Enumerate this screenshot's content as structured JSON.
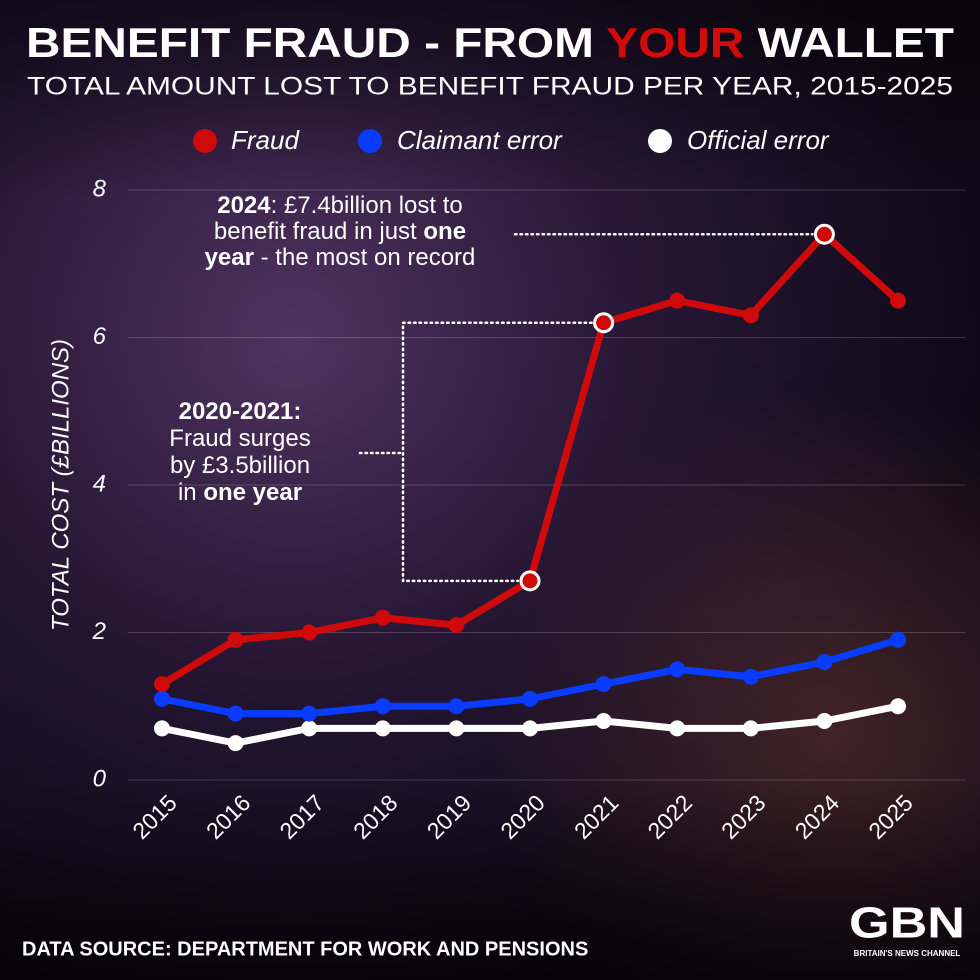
{
  "chart_data": {
    "type": "line",
    "title": [
      {
        "text": "BENEFIT FRAUD - FROM "
      },
      {
        "text": "YOUR",
        "color": "#d40b0b"
      },
      {
        "text": " WALLET"
      }
    ],
    "subtitle": "TOTAL AMOUNT LOST TO BENEFIT FRAUD PER YEAR, 2015-2025",
    "y_label": "TOTAL COST (£BILLIONS)",
    "categories": [
      "2015",
      "2016",
      "2017",
      "2018",
      "2019",
      "2020",
      "2021",
      "2022",
      "2023",
      "2024",
      "2025"
    ],
    "series": [
      {
        "name": "Fraud",
        "color": "#d00a0a",
        "values": [
          1.3,
          1.9,
          2.0,
          2.2,
          2.1,
          2.7,
          6.2,
          6.5,
          6.3,
          7.4,
          6.5
        ]
      },
      {
        "name": "Claimant error",
        "color": "#0a3cff",
        "values": [
          1.1,
          0.9,
          0.9,
          1.0,
          1.0,
          1.1,
          1.3,
          1.5,
          1.4,
          1.6,
          1.9
        ]
      },
      {
        "name": "Official error",
        "color": "#ffffff",
        "values": [
          0.7,
          0.5,
          0.7,
          0.7,
          0.7,
          0.7,
          0.8,
          0.7,
          0.7,
          0.8,
          1.0
        ]
      }
    ],
    "ylim": [
      0,
      8
    ],
    "yticks": [
      0,
      2,
      4,
      6,
      8
    ],
    "grid": true,
    "annotations": [
      {
        "lines": [
          [
            {
              "text": "2024",
              "bold": true
            },
            {
              "text": ": £7.4billion lost to"
            }
          ],
          [
            {
              "text": "benefit fraud in just "
            },
            {
              "text": "one",
              "bold": true
            }
          ],
          [
            {
              "text": "year",
              "bold": true
            },
            {
              "text": " - the most on record"
            }
          ]
        ]
      },
      {
        "lines": [
          [
            {
              "text": "2020-2021:",
              "bold": true
            }
          ],
          [
            {
              "text": "Fraud surges"
            }
          ],
          [
            {
              "text": "by £3.5billion"
            }
          ],
          [
            {
              "text": "in "
            },
            {
              "text": "one year",
              "bold": true
            }
          ]
        ]
      }
    ],
    "source": "DATA SOURCE: DEPARTMENT FOR WORK AND PENSIONS",
    "logo": "GBN",
    "logo_tagline": "BRITAIN'S NEWS CHANNEL"
  }
}
